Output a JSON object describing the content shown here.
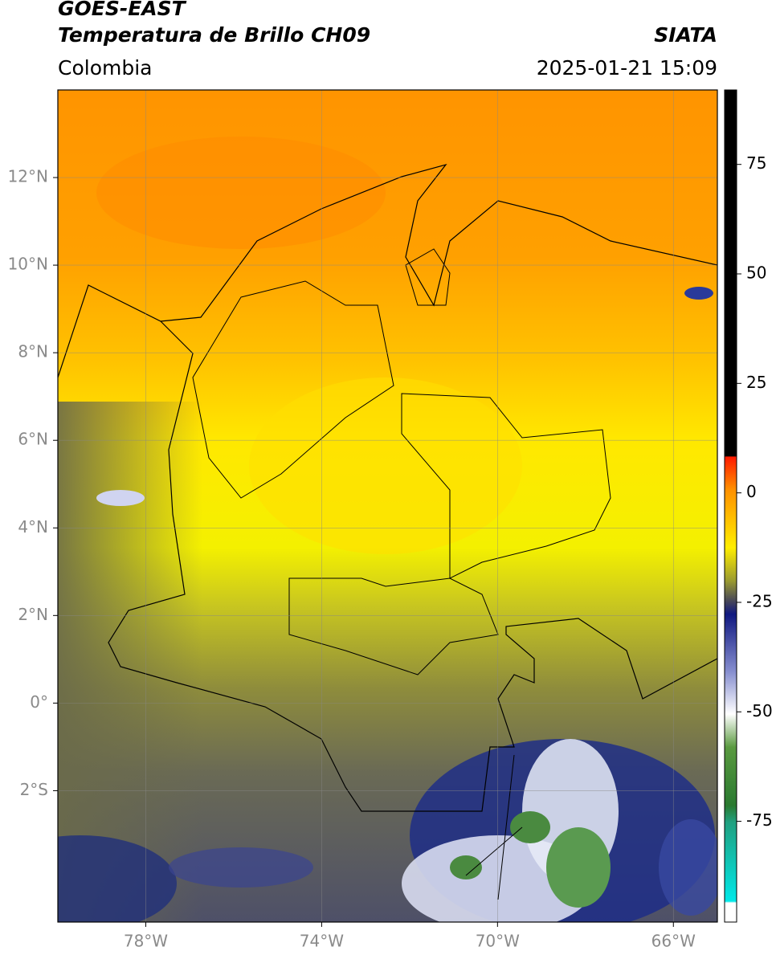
{
  "header": {
    "satellite": "GOES-EAST",
    "product": "Temperatura de Brillo CH09",
    "source": "SIATA",
    "region": "Colombia",
    "datetime": "2025-01-21 15:09"
  },
  "map": {
    "xlim": [
      -80,
      -65
    ],
    "ylim": [
      -5,
      14
    ],
    "xticks": [
      {
        "value": -78,
        "label": "78°W"
      },
      {
        "value": -74,
        "label": "74°W"
      },
      {
        "value": -70,
        "label": "70°W"
      },
      {
        "value": -66,
        "label": "66°W"
      }
    ],
    "yticks": [
      {
        "value": 12,
        "label": "12°N"
      },
      {
        "value": 10,
        "label": "10°N"
      },
      {
        "value": 8,
        "label": "8°N"
      },
      {
        "value": 6,
        "label": "6°N"
      },
      {
        "value": 4,
        "label": "4°N"
      },
      {
        "value": 2,
        "label": "2°N"
      },
      {
        "value": 0,
        "label": "0°"
      },
      {
        "value": -2,
        "label": "2°S"
      }
    ],
    "grid": true
  },
  "colorbar": {
    "lim": [
      -98,
      92
    ],
    "ticks": [
      75,
      50,
      25,
      0,
      -25,
      -50,
      -75
    ]
  }
}
